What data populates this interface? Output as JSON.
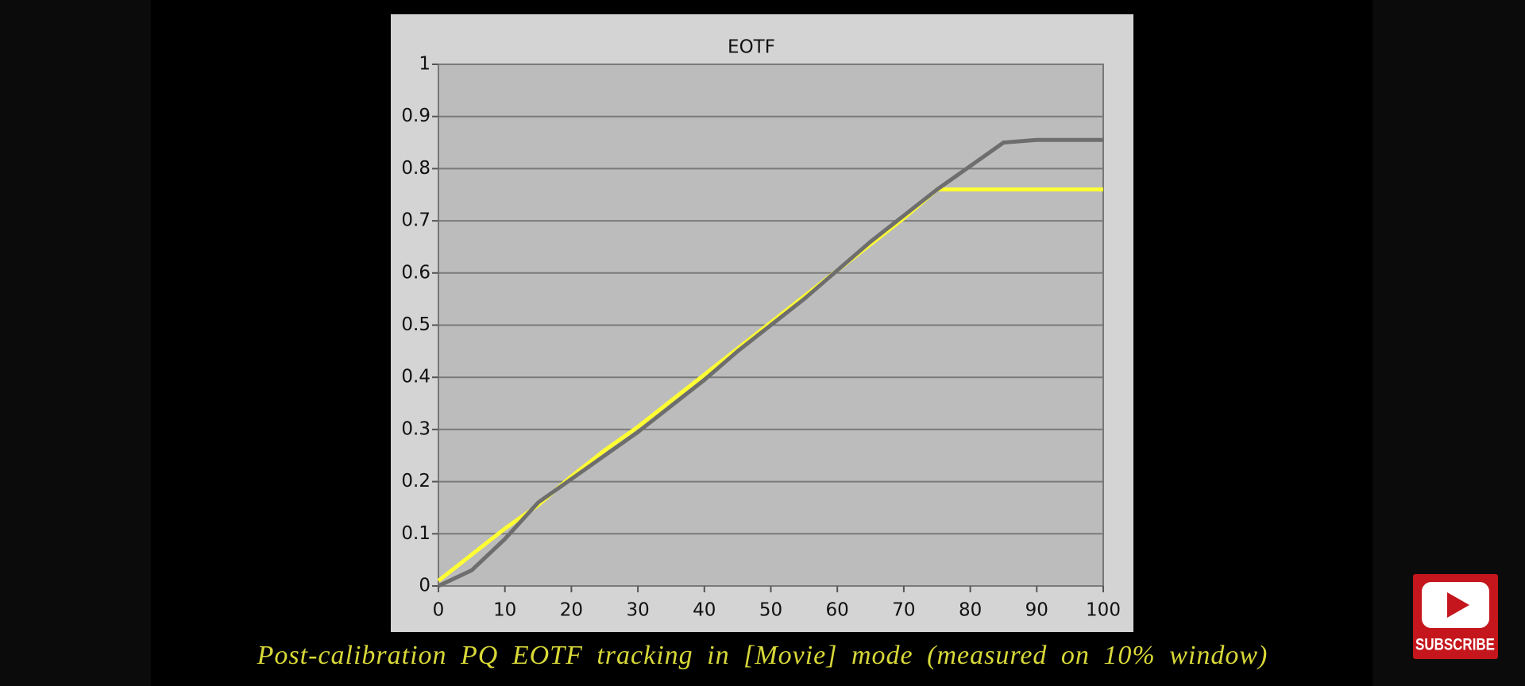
{
  "chart_data": {
    "type": "line",
    "title": "EOTF",
    "x": [
      0,
      5,
      10,
      15,
      20,
      25,
      30,
      35,
      40,
      45,
      50,
      55,
      60,
      65,
      70,
      75,
      80,
      85,
      90,
      95,
      100
    ],
    "series": [
      {
        "color": "#ffff33",
        "values": [
          0.01,
          0.06,
          0.11,
          0.155,
          0.21,
          0.26,
          0.305,
          0.355,
          0.405,
          0.455,
          0.505,
          0.555,
          0.605,
          0.655,
          0.705,
          0.76,
          0.76,
          0.76,
          0.76,
          0.76,
          0.76
        ]
      },
      {
        "color": "#6e6e6e",
        "values": [
          0,
          0.03,
          0.09,
          0.16,
          0.205,
          0.25,
          0.295,
          0.345,
          0.395,
          0.45,
          0.5,
          0.55,
          0.605,
          0.66,
          0.71,
          0.76,
          0.805,
          0.85,
          0.855,
          0.855,
          0.855
        ]
      }
    ],
    "xlim": [
      0,
      100
    ],
    "xticks": [
      0,
      10,
      20,
      30,
      40,
      50,
      60,
      70,
      80,
      90,
      100
    ],
    "ylim": [
      0,
      1
    ],
    "yticks": [
      0,
      0.1,
      0.2,
      0.3,
      0.4,
      0.5,
      0.6,
      0.7,
      0.8,
      0.9,
      1
    ],
    "grid": true
  },
  "caption": "Post-calibration PQ EOTF tracking in [Movie] mode (measured on 10% window)",
  "subscribe": "SUBSCRIBE"
}
